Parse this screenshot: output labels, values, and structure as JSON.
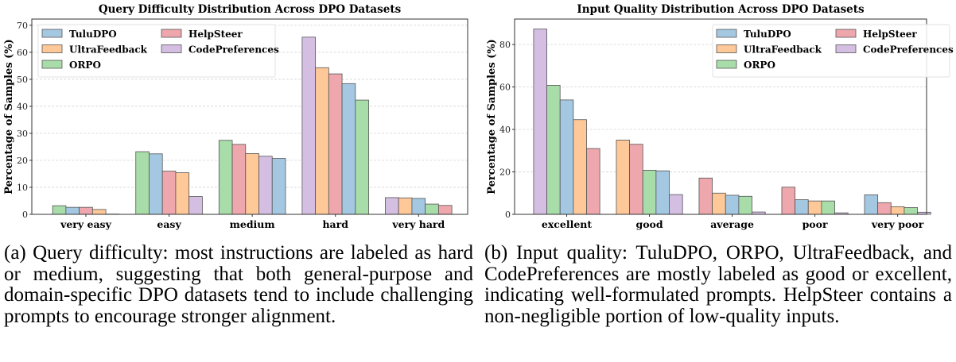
{
  "colors": {
    "TuluDPO": "#a4c8e1",
    "UltraFeedback": "#fec898",
    "ORPO": "#a8dca8",
    "HelpSteer": "#eea7ad",
    "CodePreferences": "#d4bfe3"
  },
  "chart_data": [
    {
      "type": "bar",
      "title": "Query Difficulty Distribution Across DPO Datasets",
      "xlabel": "",
      "ylabel": "Percentage of Samples (%)",
      "categories": [
        "very easy",
        "easy",
        "medium",
        "hard",
        "very hard"
      ],
      "ylim": [
        0,
        72.3
      ],
      "yticks": [
        0,
        10,
        20,
        30,
        40,
        50,
        60,
        70
      ],
      "grid": true,
      "legend": "top-left",
      "bar_order": "sorted descending within each category",
      "series": [
        {
          "name": "TuluDPO",
          "values": [
            2.6,
            22.4,
            20.7,
            48.4,
            5.9
          ]
        },
        {
          "name": "UltraFeedback",
          "values": [
            1.8,
            15.4,
            22.5,
            54.3,
            6.1
          ]
        },
        {
          "name": "ORPO",
          "values": [
            3.2,
            23.2,
            27.4,
            42.3,
            3.8
          ]
        },
        {
          "name": "HelpSteer",
          "values": [
            2.6,
            16.0,
            25.9,
            52.0,
            3.3
          ]
        },
        {
          "name": "CodePreferences",
          "values": [
            0.1,
            6.6,
            21.5,
            65.6,
            6.2
          ]
        }
      ]
    },
    {
      "type": "bar",
      "title": "Input Quality Distribution Across DPO Datasets",
      "xlabel": "",
      "ylabel": "Percentage of Samples (%)",
      "categories": [
        "excellent",
        "good",
        "average",
        "poor",
        "very poor"
      ],
      "ylim": [
        0,
        92
      ],
      "yticks": [
        0,
        20,
        40,
        60,
        80
      ],
      "grid": true,
      "legend": "top-right",
      "bar_order": "sorted descending within each category",
      "series": [
        {
          "name": "TuluDPO",
          "values": [
            53.9,
            20.5,
            9.0,
            6.9,
            9.2
          ]
        },
        {
          "name": "UltraFeedback",
          "values": [
            44.6,
            35.0,
            10.0,
            6.3,
            3.6
          ]
        },
        {
          "name": "ORPO",
          "values": [
            60.8,
            20.8,
            8.5,
            6.3,
            3.2
          ]
        },
        {
          "name": "HelpSteer",
          "values": [
            31.0,
            33.0,
            17.1,
            12.8,
            5.5
          ]
        },
        {
          "name": "CodePreferences",
          "values": [
            87.3,
            9.3,
            1.1,
            0.7,
            1.0
          ]
        }
      ]
    }
  ],
  "captions": [
    "(a) Query difficulty: most instructions are labeled as hard or medium, suggesting that both general-purpose and domain-specific DPO datasets tend to include challenging prompts to encourage stronger alignment.",
    "(b) Input quality: TuluDPO, ORPO, UltraFeedback, and CodePreferences are mostly labeled as good or excellent, indicating well-formulated prompts. HelpSteer contains a non-negligible portion of low-quality inputs."
  ]
}
